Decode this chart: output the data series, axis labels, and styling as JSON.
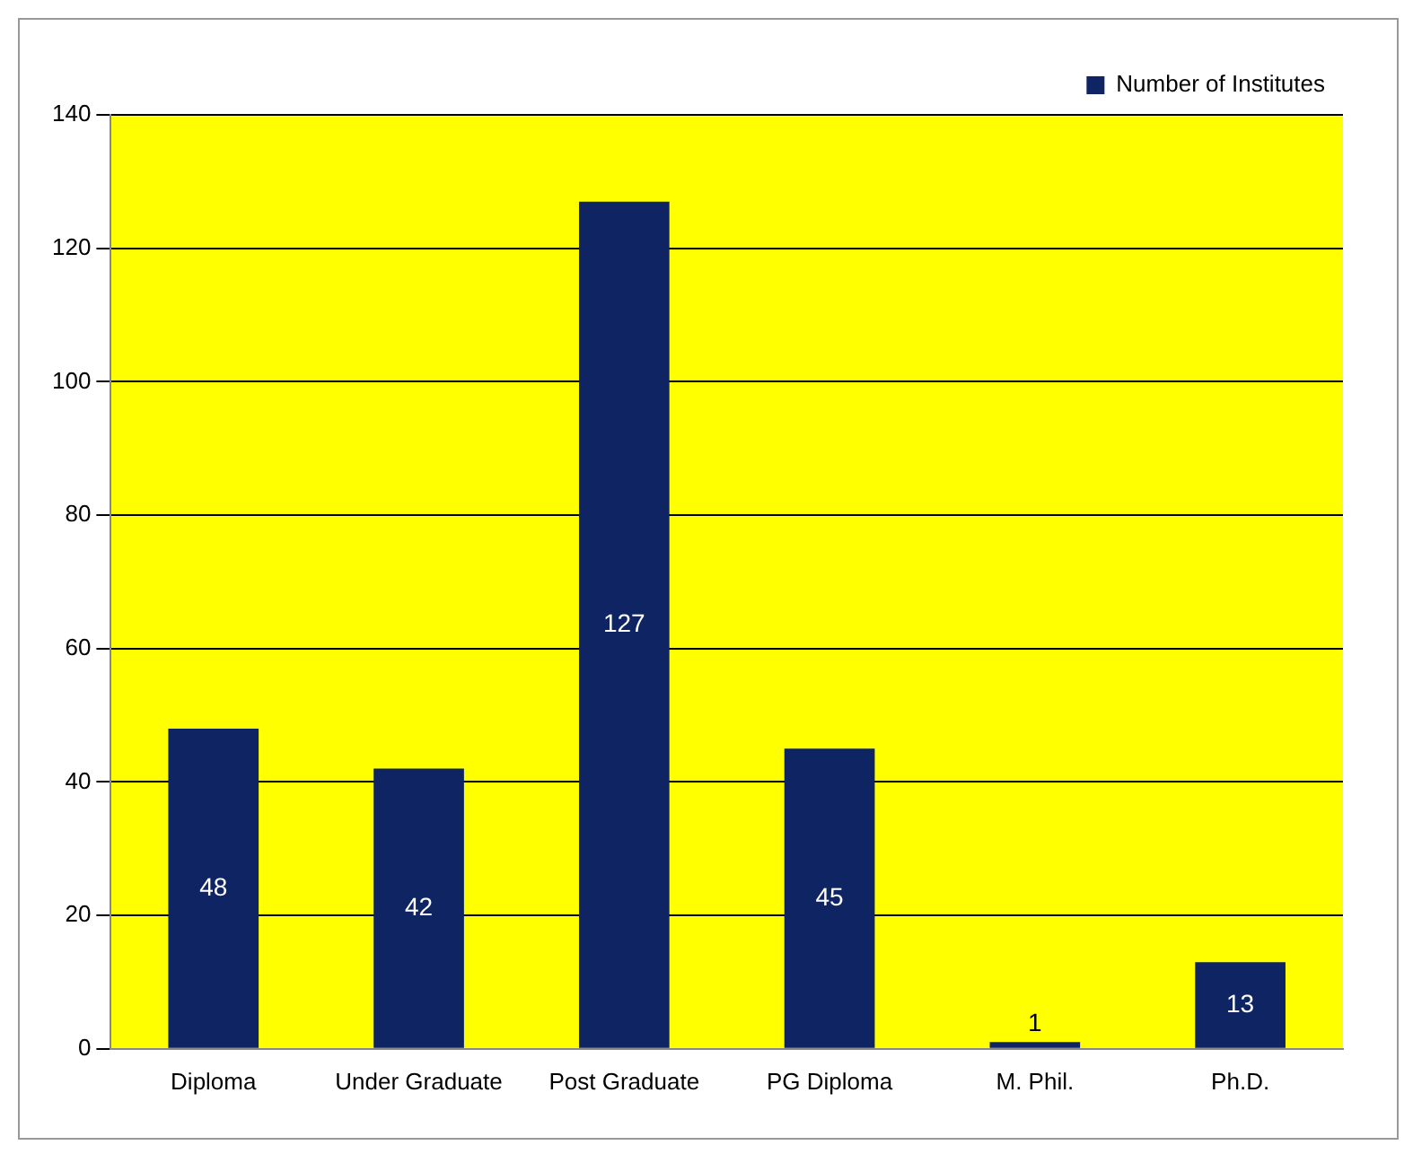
{
  "chart_data": {
    "type": "bar",
    "categories": [
      "Diploma",
      "Under Graduate",
      "Post Graduate",
      "PG Diploma",
      "M. Phil.",
      "Ph.D."
    ],
    "series": [
      {
        "name": "Number of Institutes",
        "color": "#0f2463",
        "values": [
          48,
          42,
          127,
          45,
          1,
          13
        ]
      }
    ],
    "ylim": [
      0,
      140
    ],
    "yticks": [
      0,
      20,
      40,
      60,
      80,
      100,
      120,
      140
    ],
    "grid": "y",
    "legend": "top right",
    "data_labels": true
  }
}
